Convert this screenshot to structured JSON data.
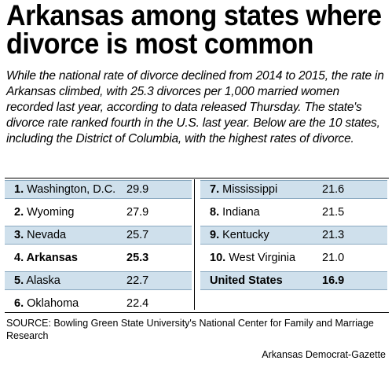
{
  "headline": {
    "line1": "Arkansas among states where",
    "line2": "divorce is most common"
  },
  "intro": "While the national rate of divorce declined from 2014 to 2015, the rate in Arkansas climbed, with 25.3 divorces per 1,000 married women recorded last year, according to data released Thursday. The state's divorce rate ranked fourth in the U.S. last year. Below are the 10 states, including the District of Columbia, with the highest rates of divorce.",
  "table": {
    "left": [
      {
        "rank": "1.",
        "name": "Washington, D.C.",
        "value": "29.9",
        "shaded": true,
        "bold": false
      },
      {
        "rank": "2.",
        "name": "Wyoming",
        "value": "27.9",
        "shaded": false,
        "bold": false
      },
      {
        "rank": "3.",
        "name": "Nevada",
        "value": "25.7",
        "shaded": true,
        "bold": false
      },
      {
        "rank": "4.",
        "name": "Arkansas",
        "value": "25.3",
        "shaded": false,
        "bold": true
      },
      {
        "rank": "5.",
        "name": "Alaska",
        "value": "22.7",
        "shaded": true,
        "bold": false
      },
      {
        "rank": "6.",
        "name": "Oklahoma",
        "value": "22.4",
        "shaded": false,
        "bold": false
      }
    ],
    "right": [
      {
        "rank": "7.",
        "name": "Mississippi",
        "value": "21.6",
        "shaded": true,
        "bold": false
      },
      {
        "rank": "8.",
        "name": "Indiana",
        "value": "21.5",
        "shaded": false,
        "bold": false
      },
      {
        "rank": "9.",
        "name": "Kentucky",
        "value": "21.3",
        "shaded": true,
        "bold": false
      },
      {
        "rank": "10.",
        "name": "West Virginia",
        "value": "21.0",
        "shaded": false,
        "bold": false
      },
      {
        "rank": "",
        "name": "United States",
        "value": "16.9",
        "shaded": true,
        "bold": true
      }
    ]
  },
  "source": "SOURCE: Bowling Green State University's National Center for Family and Marriage Research",
  "credit": "Arkansas Democrat-Gazette",
  "colors": {
    "row_shade": "#cfe0ec",
    "row_border": "#8aa9c0"
  }
}
